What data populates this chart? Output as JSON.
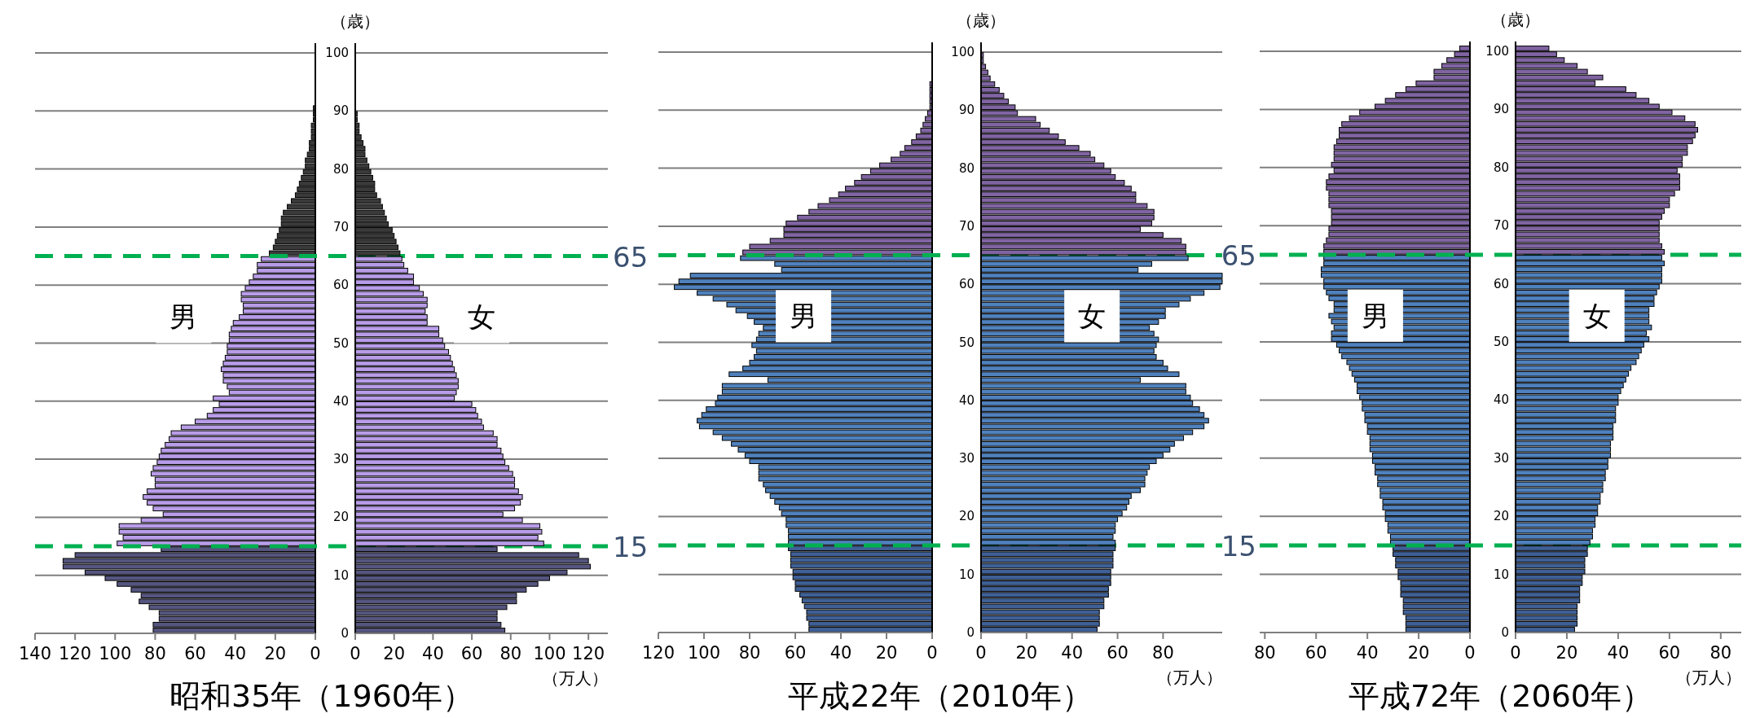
{
  "chart_data": [
    {
      "type": "bar",
      "orientation": "horizontal",
      "title": "昭和35年（1960年）",
      "xlim": [
        140,
        0
      ],
      "xticks": [
        140,
        120,
        100,
        80,
        60,
        40,
        20,
        0
      ],
      "ylim": [
        0,
        100
      ],
      "yticks": [
        0,
        10,
        20,
        30,
        40,
        50,
        60,
        70,
        80,
        90,
        100
      ],
      "tick_labels": "x",
      "grid": "y",
      "annotations": [
        "男"
      ],
      "ref_lines": [
        {
          "axis": "y",
          "value": 65,
          "label": "65",
          "color": "#00b050",
          "line_style": "dashed"
        },
        {
          "axis": "y",
          "value": 15,
          "label": "15",
          "color": "#00b050",
          "line_style": "dashed"
        }
      ],
      "series": [
        {
          "color": "#55557f",
          "x": [
            0,
            1,
            2,
            3,
            4,
            5,
            6,
            7,
            8,
            9,
            10,
            11,
            12,
            13,
            14
          ],
          "values": [
            81,
            81,
            78,
            78,
            83,
            88,
            87,
            92,
            99,
            105,
            115,
            126,
            126,
            120,
            77
          ]
        },
        {
          "color": "#b89ce8",
          "x": [
            15,
            16,
            17,
            18,
            19,
            20,
            21,
            22,
            23,
            24,
            25,
            26,
            27,
            28,
            29,
            30,
            31,
            32,
            33,
            34,
            35,
            36,
            37,
            38,
            39,
            40,
            41,
            42,
            43,
            44,
            45,
            46,
            47,
            48,
            49,
            50,
            51,
            52,
            53,
            54,
            55,
            56,
            57,
            58,
            59,
            60,
            61,
            62,
            63,
            64
          ],
          "values": [
            99,
            96,
            98,
            98,
            87,
            76,
            81,
            84,
            86,
            84,
            80,
            80,
            82,
            81,
            79,
            78,
            77,
            75,
            73,
            72,
            67,
            60,
            54,
            51,
            48,
            51,
            43,
            44,
            46,
            46,
            47,
            46,
            45,
            44,
            44,
            43,
            43,
            42,
            41,
            38,
            36,
            36,
            37,
            37,
            35,
            33,
            31,
            29,
            29,
            27
          ]
        },
        {
          "color": "#3a3a3a",
          "x": [
            65,
            66,
            67,
            68,
            69,
            70,
            71,
            72,
            73,
            74,
            75,
            76,
            77,
            78,
            79,
            80,
            81,
            82,
            83,
            84,
            85,
            86,
            87,
            88,
            89,
            90
          ],
          "values": [
            23,
            21,
            20,
            19,
            18,
            17,
            17,
            16,
            14,
            12,
            10,
            9,
            8,
            7,
            6,
            5,
            5,
            4,
            3,
            3,
            2,
            2,
            2,
            1,
            1,
            1
          ]
        }
      ]
    },
    {
      "type": "bar",
      "orientation": "horizontal",
      "xlabel": "（万人）",
      "ylabel": "（歳）",
      "xlim": [
        0,
        130
      ],
      "xticks": [
        0,
        20,
        40,
        60,
        80,
        100,
        120
      ],
      "ylim": [
        0,
        100
      ],
      "yticks": [
        0,
        10,
        20,
        30,
        40,
        50,
        60,
        70,
        80,
        90,
        100
      ],
      "grid": "y",
      "annotations": [
        "女"
      ],
      "series": [
        {
          "color": "#55557f",
          "x": [
            0,
            1,
            2,
            3,
            4,
            5,
            6,
            7,
            8,
            9,
            10,
            11,
            12,
            13,
            14
          ],
          "values": [
            77,
            75,
            73,
            73,
            78,
            83,
            83,
            88,
            94,
            100,
            109,
            121,
            120,
            115,
            73
          ]
        },
        {
          "color": "#b89ce8",
          "x": [
            15,
            16,
            17,
            18,
            19,
            20,
            21,
            22,
            23,
            24,
            25,
            26,
            27,
            28,
            29,
            30,
            31,
            32,
            33,
            34,
            35,
            36,
            37,
            38,
            39,
            40,
            41,
            42,
            43,
            44,
            45,
            46,
            47,
            48,
            49,
            50,
            51,
            52,
            53,
            54,
            55,
            56,
            57,
            58,
            59,
            60,
            61,
            62,
            63,
            64
          ],
          "values": [
            97,
            94,
            96,
            95,
            86,
            76,
            82,
            85,
            86,
            84,
            82,
            82,
            81,
            79,
            77,
            76,
            75,
            73,
            73,
            71,
            66,
            65,
            63,
            62,
            60,
            51,
            52,
            53,
            53,
            52,
            51,
            50,
            49,
            48,
            46,
            45,
            43,
            43,
            37,
            37,
            36,
            37,
            37,
            35,
            33,
            30,
            30,
            27,
            25,
            24
          ]
        },
        {
          "color": "#3a3a3a",
          "x": [
            65,
            66,
            67,
            68,
            69,
            70,
            71,
            72,
            73,
            74,
            75,
            76,
            77,
            78,
            79,
            80,
            81,
            82,
            83,
            84,
            85,
            86,
            87,
            88,
            89
          ],
          "values": [
            23,
            22,
            21,
            20,
            19,
            17,
            16,
            15,
            14,
            13,
            11,
            10,
            10,
            9,
            8,
            7,
            6,
            5,
            5,
            4,
            3,
            2,
            2,
            1,
            1
          ]
        }
      ]
    },
    {
      "type": "bar",
      "orientation": "horizontal",
      "title": "平成22年（2010年）",
      "xlim": [
        120,
        0
      ],
      "xticks": [
        120,
        100,
        80,
        60,
        40,
        20,
        0
      ],
      "ylim": [
        0,
        100
      ],
      "yticks": [
        0,
        10,
        20,
        30,
        40,
        50,
        60,
        70,
        80,
        90,
        100
      ],
      "tick_labels": "x",
      "grid": "y",
      "annotations": [
        "男"
      ],
      "ref_lines": [
        {
          "axis": "y",
          "value": 65,
          "color": "#00b050",
          "line_style": "dashed"
        },
        {
          "axis": "y",
          "value": 15,
          "color": "#00b050",
          "line_style": "dashed"
        }
      ],
      "series": [
        {
          "color": "#3f6096",
          "x": [
            0,
            1,
            2,
            3,
            4,
            5,
            6,
            7,
            8,
            9,
            10,
            11,
            12,
            13,
            14
          ],
          "values": [
            54,
            54,
            55,
            55,
            56,
            57,
            58,
            60,
            60,
            61,
            61,
            62,
            62,
            62,
            63
          ]
        },
        {
          "color": "#4f81bd",
          "x": [
            15,
            16,
            17,
            18,
            19,
            20,
            21,
            22,
            23,
            24,
            25,
            26,
            27,
            28,
            29,
            30,
            31,
            32,
            33,
            34,
            35,
            36,
            37,
            38,
            39,
            40,
            41,
            42,
            43,
            44,
            45,
            46,
            47,
            48,
            49,
            50,
            51,
            52,
            53,
            54,
            55,
            56,
            57,
            58,
            59,
            60,
            61,
            62,
            63,
            64
          ],
          "values": [
            63,
            63,
            63,
            64,
            64,
            66,
            67,
            69,
            71,
            73,
            74,
            76,
            76,
            76,
            80,
            82,
            85,
            88,
            92,
            96,
            102,
            103,
            101,
            99,
            95,
            94,
            92,
            92,
            72,
            89,
            83,
            80,
            78,
            77,
            79,
            77,
            76,
            74,
            78,
            81,
            86,
            90,
            96,
            103,
            113,
            111,
            106,
            66,
            69,
            84
          ]
        },
        {
          "color": "#8064a2",
          "x": [
            65,
            66,
            67,
            68,
            69,
            70,
            71,
            72,
            73,
            74,
            75,
            76,
            77,
            78,
            79,
            80,
            81,
            82,
            83,
            84,
            85,
            86,
            87,
            88,
            89,
            90,
            91,
            92,
            93,
            94
          ],
          "values": [
            83,
            80,
            71,
            65,
            65,
            64,
            59,
            54,
            50,
            45,
            41,
            38,
            34,
            31,
            27,
            23,
            18,
            14,
            12,
            9,
            7,
            5,
            4,
            3,
            2,
            1,
            1,
            1,
            1,
            1
          ]
        }
      ]
    },
    {
      "type": "bar",
      "orientation": "horizontal",
      "xlabel": "（万人）",
      "ylabel": "（歳）",
      "xlim": [
        0,
        106
      ],
      "xticks": [
        0,
        20,
        40,
        60,
        80
      ],
      "ylim": [
        0,
        100
      ],
      "yticks": [
        0,
        10,
        20,
        30,
        40,
        50,
        60,
        70,
        80,
        90,
        100
      ],
      "grid": "y",
      "annotations": [
        "女"
      ],
      "series": [
        {
          "color": "#3f6096",
          "x": [
            0,
            1,
            2,
            3,
            4,
            5,
            6,
            7,
            8,
            9,
            10,
            11,
            12,
            13,
            14
          ],
          "values": [
            51,
            52,
            52,
            52,
            54,
            54,
            56,
            56,
            57,
            57,
            57,
            58,
            58,
            58,
            59
          ]
        },
        {
          "color": "#4f81bd",
          "x": [
            15,
            16,
            17,
            18,
            19,
            20,
            21,
            22,
            23,
            24,
            25,
            26,
            27,
            28,
            29,
            30,
            31,
            32,
            33,
            34,
            35,
            36,
            37,
            38,
            39,
            40,
            41,
            42,
            43,
            44,
            45,
            46,
            47,
            48,
            49,
            50,
            51,
            52,
            53,
            54,
            55,
            56,
            57,
            58,
            59,
            60,
            61,
            62,
            63,
            64
          ],
          "values": [
            59,
            58,
            59,
            59,
            60,
            62,
            64,
            65,
            66,
            70,
            72,
            72,
            73,
            74,
            77,
            80,
            83,
            85,
            89,
            93,
            98,
            100,
            98,
            96,
            93,
            92,
            90,
            90,
            70,
            87,
            82,
            80,
            77,
            76,
            77,
            78,
            76,
            74,
            78,
            81,
            81,
            87,
            92,
            98,
            105,
            106,
            106,
            69,
            75,
            91
          ]
        },
        {
          "color": "#8064a2",
          "x": [
            65,
            66,
            67,
            68,
            69,
            70,
            71,
            72,
            73,
            74,
            75,
            76,
            77,
            78,
            79,
            80,
            81,
            82,
            83,
            84,
            85,
            86,
            87,
            88,
            89,
            90,
            91,
            92,
            93,
            94,
            95,
            96,
            97,
            98,
            99
          ],
          "values": [
            90,
            90,
            88,
            80,
            70,
            75,
            76,
            76,
            73,
            68,
            68,
            66,
            63,
            59,
            57,
            54,
            50,
            48,
            43,
            37,
            34,
            30,
            26,
            24,
            16,
            15,
            12,
            10,
            8,
            6,
            4,
            3,
            2,
            1,
            1
          ]
        }
      ]
    },
    {
      "type": "bar",
      "orientation": "horizontal",
      "title": "平成72年（2060年）",
      "xlim": [
        82,
        0
      ],
      "xticks": [
        80,
        60,
        40,
        20,
        0
      ],
      "ylim": [
        0,
        100
      ],
      "yticks": [
        0,
        10,
        20,
        30,
        40,
        50,
        60,
        70,
        80,
        90,
        100
      ],
      "tick_labels": "x",
      "grid": "y",
      "annotations": [
        "男"
      ],
      "ref_lines": [
        {
          "axis": "y",
          "value": 65,
          "label": "65",
          "color": "#00b050",
          "line_style": "dashed"
        },
        {
          "axis": "y",
          "value": 15,
          "label": "15",
          "color": "#00b050",
          "line_style": "dashed"
        }
      ],
      "series": [
        {
          "color": "#3f6096",
          "x": [
            0,
            1,
            2,
            3,
            4,
            5,
            6,
            7,
            8,
            9,
            10,
            11,
            12,
            13,
            14
          ],
          "values": [
            25,
            25,
            25,
            26,
            26,
            26,
            27,
            27,
            27,
            28,
            28,
            29,
            29,
            30,
            30
          ]
        },
        {
          "color": "#4f81bd",
          "x": [
            15,
            16,
            17,
            18,
            19,
            20,
            21,
            22,
            23,
            24,
            25,
            26,
            27,
            28,
            29,
            30,
            31,
            32,
            33,
            34,
            35,
            36,
            37,
            38,
            39,
            40,
            41,
            42,
            43,
            44,
            45,
            46,
            47,
            48,
            49,
            50,
            51,
            52,
            53,
            54,
            55,
            56,
            57,
            58,
            59,
            60,
            61,
            62,
            63,
            64
          ],
          "values": [
            31,
            31,
            32,
            32,
            33,
            33,
            34,
            34,
            35,
            35,
            36,
            36,
            37,
            37,
            38,
            38,
            39,
            39,
            39,
            40,
            40,
            41,
            41,
            42,
            42,
            43,
            44,
            44,
            45,
            46,
            47,
            48,
            50,
            51,
            52,
            54,
            54,
            53,
            54,
            55,
            53,
            53,
            55,
            56,
            57,
            57,
            58,
            58,
            57,
            57
          ]
        },
        {
          "color": "#8064a2",
          "x": [
            65,
            66,
            67,
            68,
            69,
            70,
            71,
            72,
            73,
            74,
            75,
            76,
            77,
            78,
            79,
            80,
            81,
            82,
            83,
            84,
            85,
            86,
            87,
            88,
            89,
            90,
            91,
            92,
            93,
            94,
            95,
            96,
            97,
            98,
            99,
            100
          ],
          "values": [
            57,
            57,
            56,
            55,
            55,
            54,
            54,
            54,
            55,
            55,
            55,
            56,
            56,
            55,
            53,
            54,
            53,
            53,
            53,
            52,
            51,
            51,
            50,
            47,
            43,
            37,
            33,
            29,
            25,
            21,
            14,
            14,
            11,
            9,
            6,
            4
          ]
        }
      ]
    },
    {
      "type": "bar",
      "orientation": "horizontal",
      "xlabel": "（万人）",
      "ylabel": "（歳）",
      "xlim": [
        0,
        88
      ],
      "xticks": [
        0,
        20,
        40,
        60,
        80
      ],
      "ylim": [
        0,
        100
      ],
      "yticks": [
        0,
        10,
        20,
        30,
        40,
        50,
        60,
        70,
        80,
        90,
        100
      ],
      "grid": "y",
      "annotations": [
        "女"
      ],
      "series": [
        {
          "color": "#3f6096",
          "x": [
            0,
            1,
            2,
            3,
            4,
            5,
            6,
            7,
            8,
            9,
            10,
            11,
            12,
            13,
            14
          ],
          "values": [
            23,
            24,
            24,
            24,
            24,
            25,
            25,
            25,
            26,
            26,
            27,
            27,
            27,
            28,
            28
          ]
        },
        {
          "color": "#4f81bd",
          "x": [
            15,
            16,
            17,
            18,
            19,
            20,
            21,
            22,
            23,
            24,
            25,
            26,
            27,
            28,
            29,
            30,
            31,
            32,
            33,
            34,
            35,
            36,
            37,
            38,
            39,
            40,
            41,
            42,
            43,
            44,
            45,
            46,
            47,
            48,
            49,
            50,
            51,
            52,
            53,
            54,
            55,
            56,
            57,
            58,
            59,
            60,
            61,
            62,
            63,
            64
          ],
          "values": [
            29,
            30,
            30,
            31,
            31,
            32,
            32,
            33,
            33,
            34,
            34,
            35,
            35,
            36,
            36,
            37,
            37,
            37,
            38,
            38,
            38,
            39,
            39,
            39,
            40,
            40,
            41,
            42,
            43,
            44,
            45,
            47,
            48,
            49,
            50,
            52,
            51,
            53,
            52,
            52,
            52,
            54,
            54,
            55,
            56,
            57,
            57,
            57,
            58,
            57
          ]
        },
        {
          "color": "#8064a2",
          "x": [
            65,
            66,
            67,
            68,
            69,
            70,
            71,
            72,
            73,
            74,
            75,
            76,
            77,
            78,
            79,
            80,
            81,
            82,
            83,
            84,
            85,
            86,
            87,
            88,
            89,
            90,
            91,
            92,
            93,
            94,
            95,
            96,
            97,
            98,
            99,
            100
          ],
          "values": [
            58,
            57,
            56,
            56,
            56,
            56,
            57,
            58,
            60,
            60,
            62,
            64,
            64,
            64,
            63,
            65,
            65,
            67,
            67,
            69,
            70,
            71,
            70,
            66,
            61,
            56,
            52,
            47,
            43,
            31,
            34,
            28,
            24,
            19,
            16,
            13
          ]
        }
      ]
    }
  ]
}
